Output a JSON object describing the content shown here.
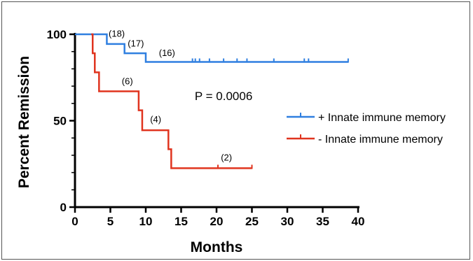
{
  "chart_data": {
    "type": "line",
    "step": true,
    "xlabel": "Months",
    "ylabel": "Percent Remission",
    "xlim": [
      0,
      40
    ],
    "ylim": [
      0,
      100
    ],
    "xticks": [
      0,
      5,
      10,
      15,
      20,
      25,
      30,
      35,
      40
    ],
    "yticks": [
      0,
      50,
      100
    ],
    "grid": false,
    "legend_position": "right",
    "series": [
      {
        "name": "+ Innate immune memory",
        "color": "#2f7fe0",
        "steps": [
          [
            0,
            100
          ],
          [
            4.5,
            94.4
          ],
          [
            7,
            89
          ],
          [
            10,
            84
          ],
          [
            38.6,
            84
          ]
        ],
        "censored": [
          16.6,
          17.0,
          17.6,
          19.0,
          21.0,
          22.9,
          24.3,
          28.1,
          32.4,
          33.0,
          38.6
        ]
      },
      {
        "name": "- Innate immune memory",
        "color": "#e0341f",
        "steps": [
          [
            2.3,
            100
          ],
          [
            2.5,
            89
          ],
          [
            2.8,
            78
          ],
          [
            3.4,
            67
          ],
          [
            9,
            56
          ],
          [
            9.5,
            44.5
          ],
          [
            13.2,
            33.5
          ],
          [
            13.6,
            22.5
          ],
          [
            25,
            22.5
          ]
        ],
        "censored": [
          20.2,
          25.0
        ]
      }
    ],
    "annotations": [
      {
        "text": "(18)",
        "x": 5.9,
        "y": 98.5
      },
      {
        "text": "(17)",
        "x": 8.6,
        "y": 93
      },
      {
        "text": "(16)",
        "x": 13.0,
        "y": 87.5
      },
      {
        "text": "(6)",
        "x": 7.4,
        "y": 71
      },
      {
        "text": "(4)",
        "x": 11.4,
        "y": 49
      },
      {
        "text": "(2)",
        "x": 21.4,
        "y": 27
      },
      {
        "text": "P = 0.0006",
        "x": 21.0,
        "y": 62,
        "cls": "pval"
      }
    ]
  }
}
